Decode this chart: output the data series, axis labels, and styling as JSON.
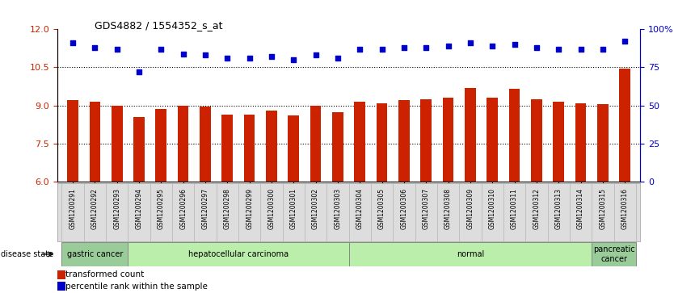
{
  "title": "GDS4882 / 1554352_s_at",
  "samples": [
    "GSM1200291",
    "GSM1200292",
    "GSM1200293",
    "GSM1200294",
    "GSM1200295",
    "GSM1200296",
    "GSM1200297",
    "GSM1200298",
    "GSM1200299",
    "GSM1200300",
    "GSM1200301",
    "GSM1200302",
    "GSM1200303",
    "GSM1200304",
    "GSM1200305",
    "GSM1200306",
    "GSM1200307",
    "GSM1200308",
    "GSM1200309",
    "GSM1200310",
    "GSM1200311",
    "GSM1200312",
    "GSM1200313",
    "GSM1200314",
    "GSM1200315",
    "GSM1200316"
  ],
  "bar_values": [
    9.2,
    9.15,
    9.0,
    8.55,
    8.85,
    9.0,
    8.95,
    8.65,
    8.65,
    8.8,
    8.6,
    9.0,
    8.75,
    9.15,
    9.1,
    9.2,
    9.25,
    9.3,
    9.7,
    9.3,
    9.65,
    9.25,
    9.15,
    9.1,
    9.05,
    10.45
  ],
  "percentile_values": [
    91,
    88,
    87,
    72,
    87,
    84,
    83,
    81,
    81,
    82,
    80,
    83,
    81,
    87,
    87,
    88,
    88,
    89,
    91,
    89,
    90,
    88,
    87,
    87,
    87,
    92
  ],
  "bar_color": "#cc2200",
  "dot_color": "#0000cc",
  "ylim_left": [
    6,
    12
  ],
  "ylim_right": [
    0,
    100
  ],
  "yticks_left": [
    6,
    7.5,
    9,
    10.5,
    12
  ],
  "yticks_right": [
    0,
    25,
    50,
    75,
    100
  ],
  "grid_values": [
    7.5,
    9.0,
    10.5
  ],
  "disease_groups": [
    {
      "label": "gastric cancer",
      "start": 0,
      "end": 3,
      "color": "#99cc99"
    },
    {
      "label": "hepatocellular carcinoma",
      "start": 3,
      "end": 13,
      "color": "#bbeeaa"
    },
    {
      "label": "normal",
      "start": 13,
      "end": 24,
      "color": "#bbeeaa"
    },
    {
      "label": "pancreatic\ncancer",
      "start": 24,
      "end": 26,
      "color": "#99cc99"
    }
  ],
  "legend_bar_label": "transformed count",
  "legend_dot_label": "percentile rank within the sample",
  "disease_state_label": "disease state",
  "background_color": "#ffffff",
  "plot_bg_color": "#ffffff",
  "axis_label_color": "#cc2200",
  "right_axis_color": "#0000cc",
  "tick_label_bg": "#dddddd",
  "bar_width": 0.5
}
